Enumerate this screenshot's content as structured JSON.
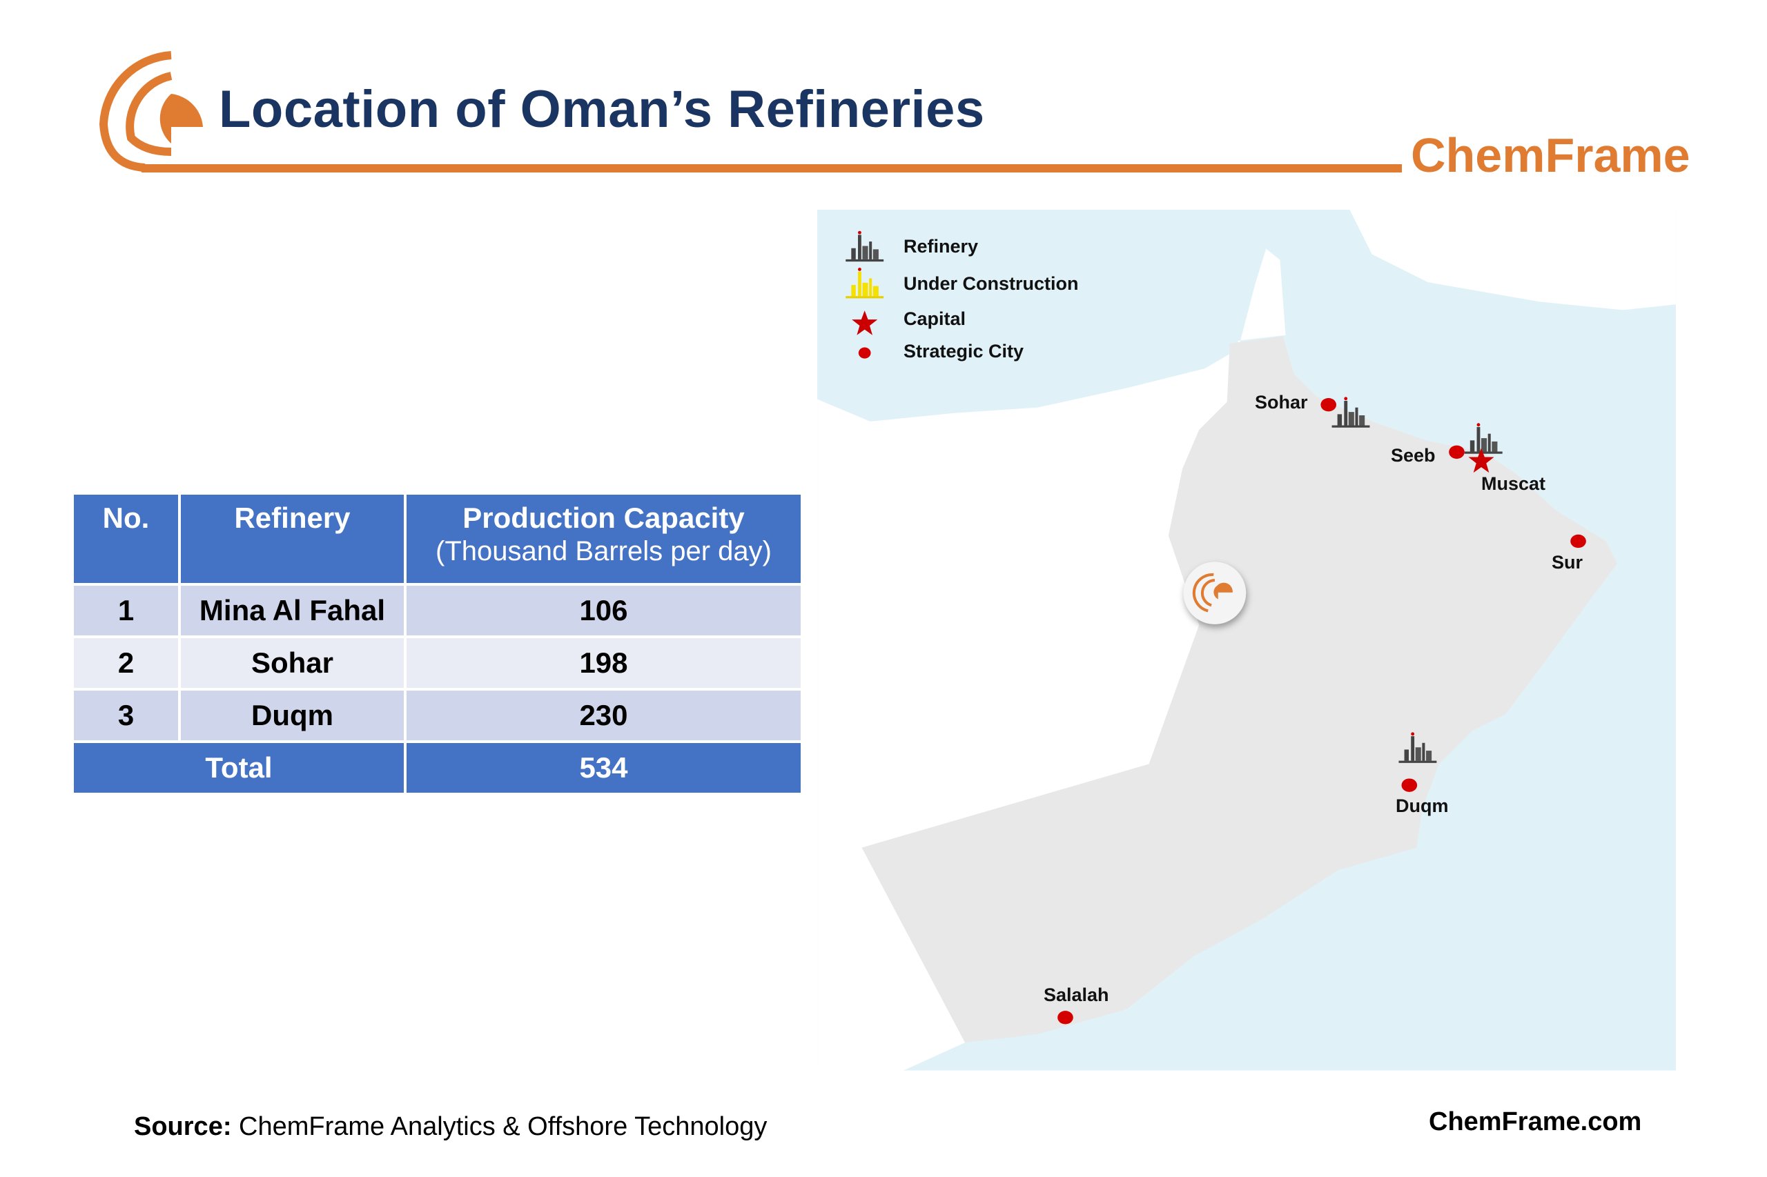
{
  "header": {
    "title": "Location of Oman’s Refineries",
    "brand": "ChemFrame"
  },
  "table": {
    "columns": [
      "No.",
      "Refinery",
      "Production Capacity"
    ],
    "capacity_unit": "(Thousand Barrels per day)",
    "rows": [
      {
        "no": "1",
        "refinery": "Mina Al Fahal",
        "capacity": "106"
      },
      {
        "no": "2",
        "refinery": "Sohar",
        "capacity": "198"
      },
      {
        "no": "3",
        "refinery": "Duqm",
        "capacity": "230"
      }
    ],
    "total_label": "Total",
    "total_value": "534",
    "colors": {
      "header": "#4472c4",
      "row_dark": "#cfd5ea",
      "row_light": "#e9ebf5"
    }
  },
  "map": {
    "legend": [
      {
        "icon": "refinery-icon",
        "label": "Refinery"
      },
      {
        "icon": "under-construction-icon",
        "label": "Under Construction"
      },
      {
        "icon": "capital-star-icon",
        "label": "Capital"
      },
      {
        "icon": "strategic-city-dot-icon",
        "label": "Strategic City"
      }
    ],
    "cities": {
      "sohar": "Sohar",
      "seeb": "Seeb",
      "muscat": "Muscat",
      "sur": "Sur",
      "duqm": "Duqm",
      "salalah": "Salalah"
    },
    "colors": {
      "sea": "#e0f1f8",
      "oman": "#e8e8e8",
      "marker": "#d40000",
      "refinery": "#444444",
      "construction": "#f5e000"
    }
  },
  "footer": {
    "source_label": "Source:",
    "source_text": " ChemFrame Analytics & Offshore Technology",
    "site": "ChemFrame.com"
  },
  "brand_color": "#e07b32"
}
